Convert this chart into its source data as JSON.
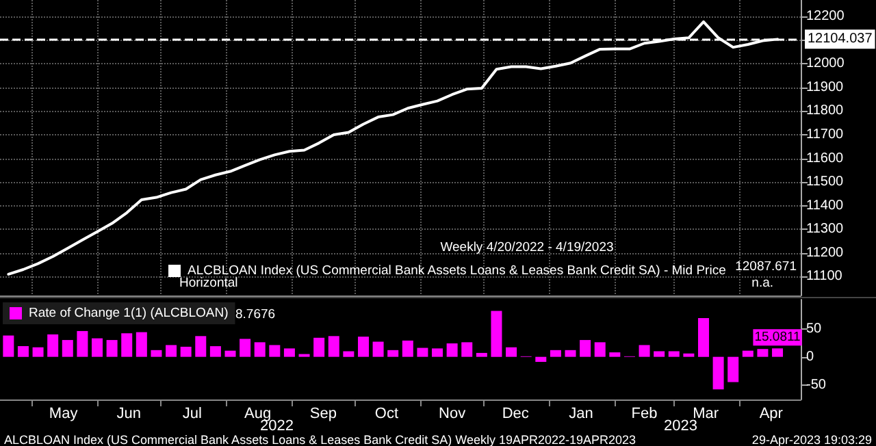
{
  "chart_data": [
    {
      "type": "line",
      "subtitle": "Weekly 4/20/2022 - 4/19/2023",
      "x": [
        "2022-04-20",
        "2022-04-27",
        "2022-05-04",
        "2022-05-11",
        "2022-05-18",
        "2022-05-25",
        "2022-06-01",
        "2022-06-08",
        "2022-06-15",
        "2022-06-22",
        "2022-06-29",
        "2022-07-06",
        "2022-07-13",
        "2022-07-20",
        "2022-07-27",
        "2022-08-03",
        "2022-08-10",
        "2022-08-17",
        "2022-08-24",
        "2022-08-31",
        "2022-09-07",
        "2022-09-14",
        "2022-09-21",
        "2022-09-28",
        "2022-10-05",
        "2022-10-12",
        "2022-10-19",
        "2022-10-26",
        "2022-11-02",
        "2022-11-09",
        "2022-11-16",
        "2022-11-23",
        "2022-11-30",
        "2022-12-07",
        "2022-12-14",
        "2022-12-21",
        "2022-12-28",
        "2023-01-04",
        "2023-01-11",
        "2023-01-18",
        "2023-01-25",
        "2023-02-01",
        "2023-02-08",
        "2023-02-15",
        "2023-02-22",
        "2023-03-01",
        "2023-03-08",
        "2023-03-15",
        "2023-03-22",
        "2023-03-29",
        "2023-04-05",
        "2023-04-12",
        "2023-04-19"
      ],
      "series": [
        {
          "name": "ALCBLOAN Index (US Commercial Bank Assets Loans & Leases Bank Credit SA) - Mid Price",
          "color": "#ffffff",
          "values": [
            11110,
            11130,
            11155,
            11185,
            11220,
            11255,
            11290,
            11325,
            11370,
            11425,
            11435,
            11455,
            11470,
            11510,
            11530,
            11545,
            11570,
            11595,
            11615,
            11630,
            11635,
            11665,
            11700,
            11710,
            11745,
            11775,
            11785,
            11812,
            11828,
            11843,
            11870,
            11893,
            11897,
            11977,
            11988,
            11988,
            11979,
            11990,
            12003,
            12033,
            12062,
            12063,
            12063,
            12087,
            12095,
            12105,
            12110,
            12178,
            12110,
            12070,
            12082,
            12098,
            12104
          ]
        }
      ],
      "xlim": [
        "2022-04-16",
        "2023-04-30"
      ],
      "xticks": [
        {
          "value": "2022-05-01",
          "label": null
        },
        {
          "value": "2022-06-01",
          "label": null
        },
        {
          "value": "2022-07-01",
          "label": null
        },
        {
          "value": "2022-08-01",
          "label": null
        },
        {
          "value": "2022-09-01",
          "label": null
        },
        {
          "value": "2022-10-01",
          "label": null
        },
        {
          "value": "2022-11-01",
          "label": null
        },
        {
          "value": "2022-12-01",
          "label": null
        },
        {
          "value": "2023-01-01",
          "label": null
        },
        {
          "value": "2023-02-01",
          "label": null
        },
        {
          "value": "2023-03-01",
          "label": null
        },
        {
          "value": "2023-04-01",
          "label": null
        }
      ],
      "ylim": [
        11020,
        12270
      ],
      "yticks": [
        11100,
        11200,
        11300,
        11400,
        11500,
        11600,
        11700,
        11800,
        11900,
        12000,
        {
          "value": 12100,
          "label": null
        },
        12200
      ],
      "tick_labels": "y",
      "ref_lines": [
        {
          "axis": "y",
          "value": 12104.037,
          "label": "12104.037",
          "color": "#ffffff",
          "line_style": "dashed"
        }
      ],
      "annotations": [
        "12087.671",
        "Horizontal",
        "n.a."
      ],
      "grid": true,
      "legend": "bottom right",
      "marker": "none",
      "line_style": "solid"
    },
    {
      "type": "bar",
      "x": [
        "2022-04-20",
        "2022-04-27",
        "2022-05-04",
        "2022-05-11",
        "2022-05-18",
        "2022-05-25",
        "2022-06-01",
        "2022-06-08",
        "2022-06-15",
        "2022-06-22",
        "2022-06-29",
        "2022-07-06",
        "2022-07-13",
        "2022-07-20",
        "2022-07-27",
        "2022-08-03",
        "2022-08-10",
        "2022-08-17",
        "2022-08-24",
        "2022-08-31",
        "2022-09-07",
        "2022-09-14",
        "2022-09-21",
        "2022-09-28",
        "2022-10-05",
        "2022-10-12",
        "2022-10-19",
        "2022-10-26",
        "2022-11-02",
        "2022-11-09",
        "2022-11-16",
        "2022-11-23",
        "2022-11-30",
        "2022-12-07",
        "2022-12-14",
        "2022-12-21",
        "2022-12-28",
        "2023-01-04",
        "2023-01-11",
        "2023-01-18",
        "2023-01-25",
        "2023-02-01",
        "2023-02-08",
        "2023-02-15",
        "2023-02-22",
        "2023-03-01",
        "2023-03-08",
        "2023-03-15",
        "2023-03-22",
        "2023-03-29",
        "2023-04-05",
        "2023-04-12",
        "2023-04-19"
      ],
      "series": [
        {
          "name": "Rate of Change 1(1) (ALCBLOAN)",
          "color": "#ff00ff",
          "values": [
            38,
            19,
            17,
            40,
            30,
            46,
            33,
            30,
            42,
            44,
            12,
            21,
            18,
            37,
            19,
            11,
            32,
            26,
            21,
            15,
            5,
            34,
            37,
            10,
            36,
            27,
            12,
            29,
            16,
            15,
            24,
            26,
            7,
            82,
            17,
            1,
            -9,
            12,
            12,
            30,
            26,
            8,
            1,
            21,
            10,
            10,
            6,
            69,
            -58,
            -45,
            11,
            14,
            15.0811
          ],
          "value_labels": [
            null,
            null,
            null,
            null,
            null,
            null,
            null,
            null,
            null,
            null,
            null,
            null,
            null,
            null,
            null,
            null,
            null,
            null,
            null,
            null,
            null,
            null,
            null,
            null,
            null,
            null,
            null,
            null,
            null,
            null,
            null,
            null,
            null,
            null,
            null,
            null,
            null,
            null,
            null,
            null,
            null,
            null,
            null,
            null,
            null,
            null,
            null,
            null,
            null,
            null,
            null,
            null,
            "15.0811"
          ]
        }
      ],
      "xlim": [
        "2022-04-16",
        "2023-04-30"
      ],
      "xticks": [
        {
          "value": "2022-05-01",
          "label": null
        },
        {
          "value": "2022-05-16",
          "label": "May"
        },
        {
          "value": "2022-06-01",
          "label": null
        },
        {
          "value": "2022-06-16",
          "label": "Jun"
        },
        {
          "value": "2022-07-01",
          "label": null
        },
        {
          "value": "2022-07-16",
          "label": "Jul"
        },
        {
          "value": "2022-08-01",
          "label": null
        },
        {
          "value": "2022-08-16",
          "label": "Aug"
        },
        {
          "value": "2022-09-01",
          "label": null
        },
        {
          "value": "2022-09-16",
          "label": "Sep"
        },
        {
          "value": "2022-10-01",
          "label": null
        },
        {
          "value": "2022-10-16",
          "label": "Oct"
        },
        {
          "value": "2022-11-01",
          "label": null
        },
        {
          "value": "2022-11-16",
          "label": "Nov"
        },
        {
          "value": "2022-12-01",
          "label": null
        },
        {
          "value": "2022-12-16",
          "label": "Dec"
        },
        {
          "value": "2023-01-01",
          "label": null
        },
        {
          "value": "2023-01-16",
          "label": "Jan"
        },
        {
          "value": "2023-02-01",
          "label": null
        },
        {
          "value": "2023-02-15",
          "label": "Feb"
        },
        {
          "value": "2023-03-01",
          "label": null
        },
        {
          "value": "2023-03-16",
          "label": "Mar"
        },
        {
          "value": "2023-04-01",
          "label": null
        },
        {
          "value": "2023-04-16",
          "label": "Apr"
        }
      ],
      "ylim": [
        -76,
        102
      ],
      "yticks": [
        -50,
        0,
        50
      ],
      "annotations": [
        "8.7676",
        "2022",
        "2023",
        "ALCBLOAN Index (US Commercial Bank Assets Loans & Leases Bank Credit SA) Weekly 19APR2022-19APR2023",
        "29-Apr-2023 19:03:29"
      ],
      "grid": false,
      "legend": "top left"
    }
  ]
}
